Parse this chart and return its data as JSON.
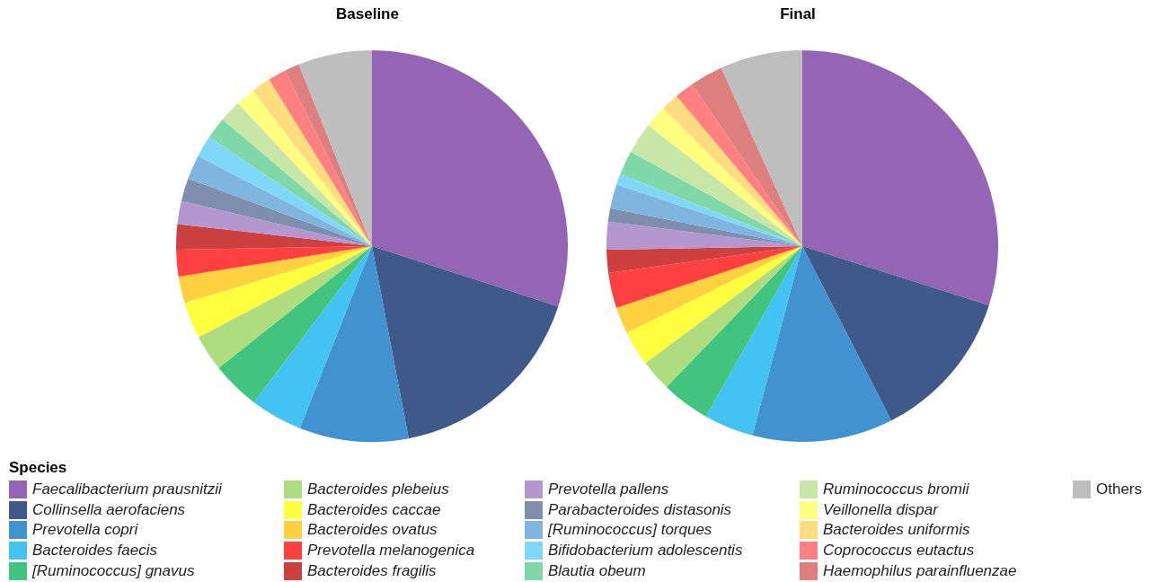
{
  "chart_data": {
    "type": "pie",
    "legend": "bottom",
    "legend_title": "Species",
    "categories": [
      "Faecalibacterium prausnitzii",
      "Collinsella aerofaciens",
      "Prevotella copri",
      "Bacteroides faecis",
      "[Ruminococcus] gnavus",
      "Bacteroides plebeius",
      "Bacteroides caccae",
      "Bacteroides ovatus",
      "Prevotella melanogenica",
      "Bacteroides fragilis",
      "Prevotella pallens",
      "Parabacteroides distasonis",
      "[Ruminococcus] torques",
      "Bifidobacterium adolescentis",
      "Blautia obeum",
      "Ruminococcus bromii",
      "Veillonella dispar",
      "Bacteroides uniformis",
      "Coprococcus eutactus",
      "Haemophilus parainfluenzae",
      "Others"
    ],
    "colors": [
      "#9565b5",
      "#3f5a8a",
      "#4292cf",
      "#42c3f2",
      "#41c47d",
      "#afdc7f",
      "#ffff40",
      "#ffd040",
      "#ff4040",
      "#cc4040",
      "#b497cf",
      "#7e8eae",
      "#7fb5df",
      "#80d8f8",
      "#80d8a8",
      "#c8e6a8",
      "#ffff80",
      "#ffdc80",
      "#ff8080",
      "#dd7f7f",
      "#bebebe"
    ],
    "series": [
      {
        "name": "Baseline",
        "values": [
          30,
          17,
          9,
          4.3,
          4,
          3,
          3,
          2.2,
          2.2,
          2.1,
          1.9,
          1.9,
          2,
          1.8,
          1.8,
          1.8,
          1.6,
          1.6,
          1.5,
          1.2,
          6.1
        ]
      },
      {
        "name": "Final",
        "values": [
          29.9,
          12.6,
          11.6,
          4.1,
          4,
          2.6,
          2.9,
          2.2,
          2.9,
          1.9,
          2.3,
          1.1,
          2,
          0.9,
          2,
          2.6,
          1.8,
          1.5,
          1.6,
          2.7,
          6.8
        ]
      }
    ]
  }
}
